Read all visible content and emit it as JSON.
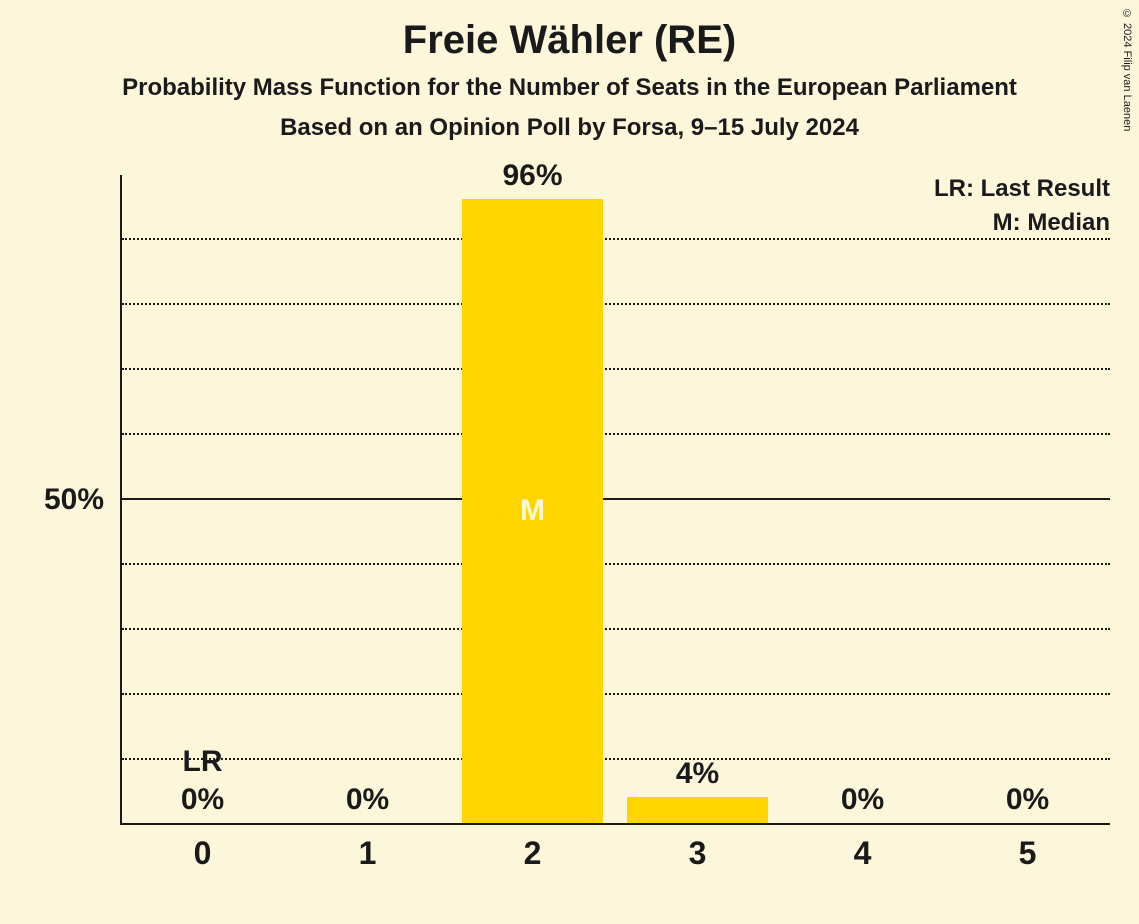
{
  "title": "Freie Wähler (RE)",
  "subtitle1": "Probability Mass Function for the Number of Seats in the European Parliament",
  "subtitle2": "Based on an Opinion Poll by Forsa, 9–15 July 2024",
  "copyright": "© 2024 Filip van Laenen",
  "legend": {
    "lr": "LR: Last Result",
    "m": "M: Median"
  },
  "chart": {
    "type": "bar",
    "background_color": "#fcf7da",
    "bar_color": "#ffd500",
    "text_color": "#1a1a1a",
    "median_label_color": "#fcf7da",
    "ymax": 100,
    "ytick_major": 50,
    "ytick_minor": 10,
    "ytick_label": "50%",
    "bar_width_ratio": 0.85,
    "categories": [
      "0",
      "1",
      "2",
      "3",
      "4",
      "5"
    ],
    "values": [
      0,
      0,
      96,
      4,
      0,
      0
    ],
    "value_labels": [
      "0%",
      "0%",
      "96%",
      "4%",
      "0%",
      "0%"
    ],
    "lr_index": 0,
    "lr_label": "LR",
    "median_index": 2,
    "median_label": "M",
    "title_fontsize": 40,
    "subtitle_fontsize": 24,
    "axis_label_fontsize": 32,
    "value_label_fontsize": 30,
    "legend_fontsize": 24
  }
}
